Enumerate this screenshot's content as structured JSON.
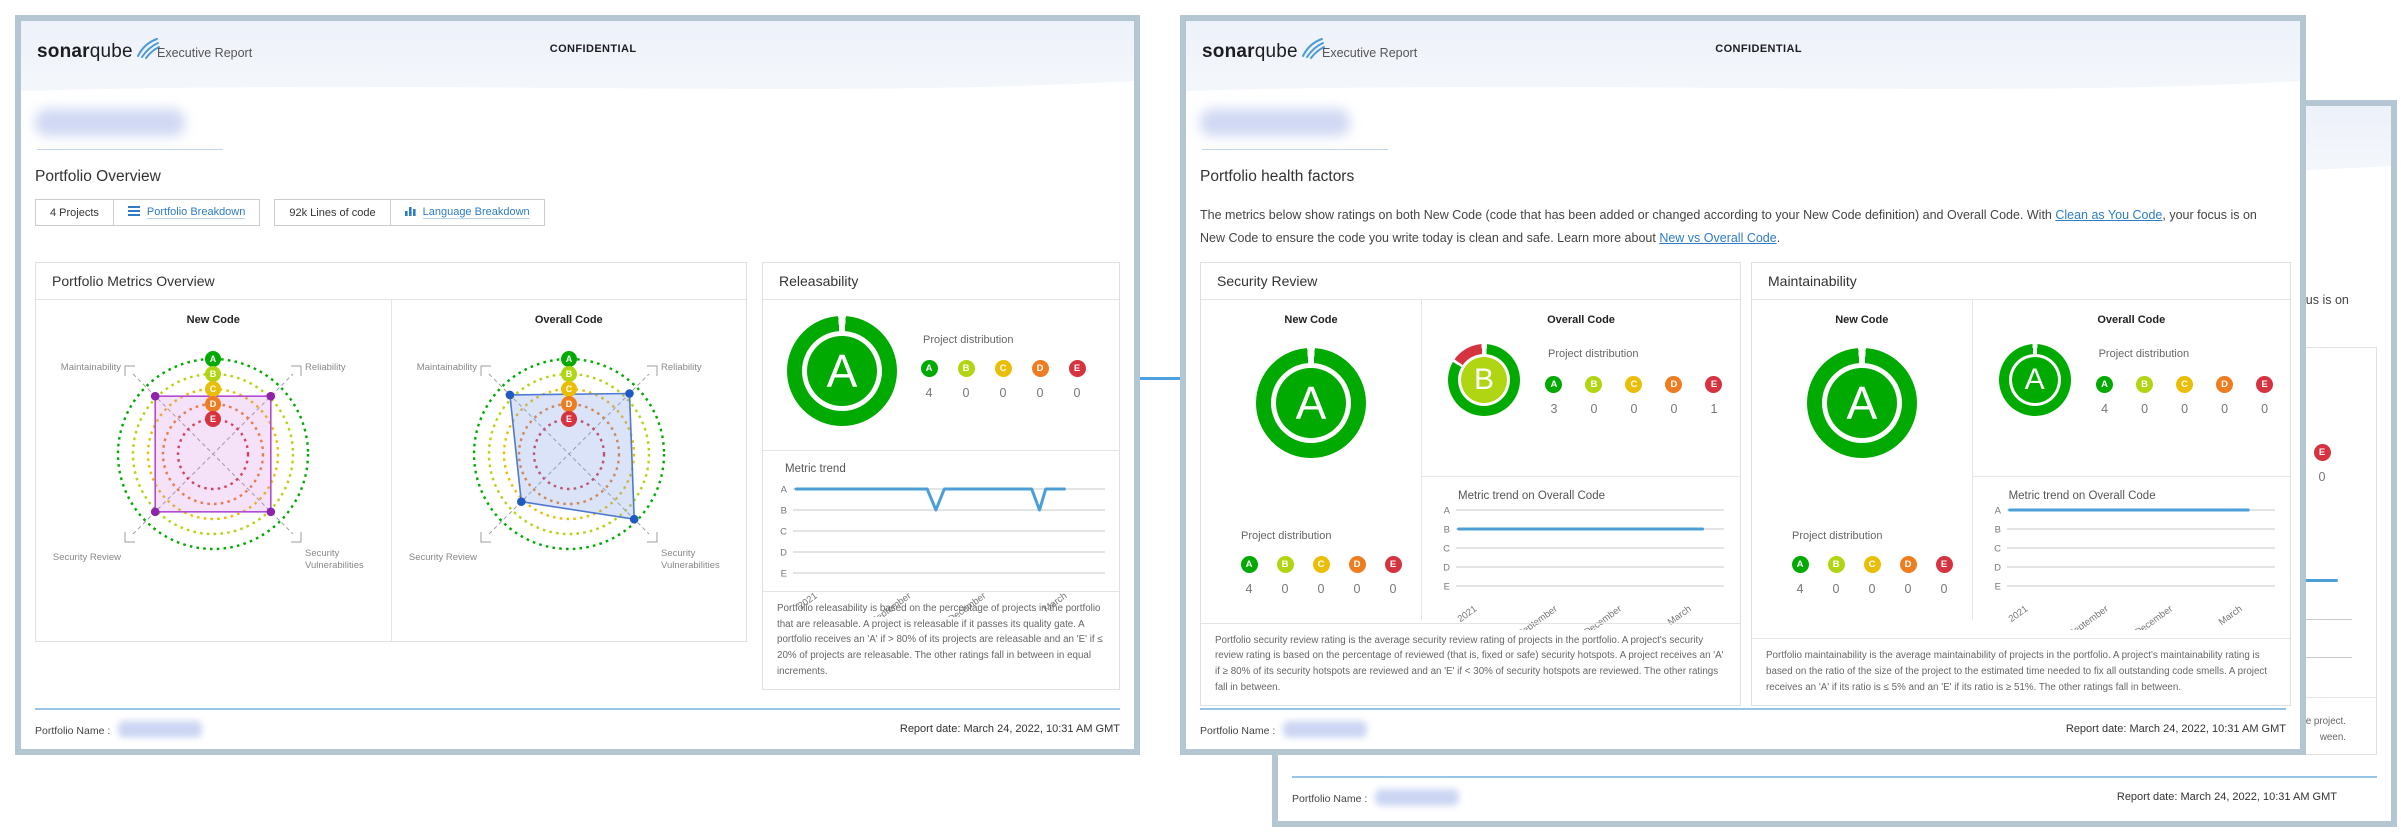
{
  "colors": {
    "trend_line": "#4b9fd5",
    "link": "#2f7cc4",
    "page_border": "#b5c6d3",
    "rating": {
      "A": "#00aa00",
      "B": "#b0d513",
      "C": "#eabe06",
      "D": "#ed7d20",
      "E": "#d4333f"
    }
  },
  "header": {
    "brand_bold": "sonar",
    "brand_light": "qube",
    "product": "Executive Report",
    "confidential": "CONFIDENTIAL"
  },
  "footer": {
    "portfolio_name_label": "Portfolio Name :",
    "report_date": "Report date: March 24, 2022, 10:31 AM GMT"
  },
  "page1": {
    "section_title": "Portfolio Overview",
    "toolbar": {
      "projects": "4 Projects",
      "portfolio_breakdown": "Portfolio Breakdown",
      "lines_of_code": "92k Lines of code",
      "language_breakdown": "Language Breakdown"
    },
    "metrics_box_title": "Portfolio Metrics Overview",
    "new_code_label": "New Code",
    "overall_code_label": "Overall Code",
    "releasability": {
      "title": "Releasability",
      "rating": "A",
      "distribution_label": "Project distribution",
      "trend_label": "Metric trend",
      "footnote": "Portfolio releasability is based on the percentage of projects in the portfolio that are releasable. A project is releasable if it passes its quality gate. A portfolio receives an 'A' if > 80% of its projects are releasable and an 'E' if ≤ 20% of projects are releasable. The other ratings fall in between in equal increments."
    }
  },
  "page2": {
    "section_title": "Portfolio health factors",
    "intro": {
      "part1": "The metrics below show ratings on both New Code (code that has been added or changed according to your New Code definition) and Overall Code. With ",
      "link1": "Clean as You Code",
      "part2": ", your focus is on New Code to ensure the code you write today is clean and safe. Learn more about ",
      "link2": "New vs Overall Code",
      "part3": "."
    },
    "security_review": {
      "title": "Security Review",
      "new_code_label": "New Code",
      "overall_code_label": "Overall Code",
      "new_rating": "A",
      "overall_rating": "B",
      "distribution_label": "Project distribution",
      "trend_label": "Metric trend on Overall Code",
      "footnote": "Portfolio security review rating is the average security review rating of projects in the portfolio. A project's security review rating is based on the percentage of reviewed (that is, fixed or safe) security hotspots. A project receives an 'A' if ≥ 80% of its security hotspots are reviewed and an 'E' if < 30% of security hotspots are reviewed. The other ratings fall in between."
    },
    "maintainability": {
      "title": "Maintainability",
      "new_code_label": "New Code",
      "overall_code_label": "Overall Code",
      "new_rating": "A",
      "overall_rating": "A",
      "distribution_label": "Project distribution",
      "trend_label": "Metric trend on Overall Code",
      "footnote": "Portfolio maintainability is the average maintainability of projects in the portfolio. A project's maintainability rating is based on the ratio of the size of the project to the estimated time needed to fix all outstanding code smells. A project receives an 'A' if its ratio is ≤ 5% and an 'E' if its ratio is ≥ 51%. The other ratings fall in between."
    }
  },
  "page3": {
    "footnote_fragment_1": "the project.",
    "footnote_fragment_2": "ween."
  },
  "chart_data": [
    {
      "id": "new-code-radar",
      "type": "radar",
      "title": "New Code",
      "axes": [
        "Maintainability",
        "Reliability",
        "Security Vulnerabilities",
        "Security Review"
      ],
      "rings": [
        "A",
        "B",
        "C",
        "D",
        "E"
      ],
      "series": {
        "name": "New Code ratings",
        "stroke": "#b24bd6",
        "fill": "rgba(210,120,225,0.22)",
        "dot": "#8e24aa",
        "values_pct": [
          86,
          86,
          86,
          86
        ]
      }
    },
    {
      "id": "overall-code-radar",
      "type": "radar",
      "title": "Overall Code",
      "axes": [
        "Maintainability",
        "Reliability",
        "Security Vulnerabilities",
        "Security Review"
      ],
      "rings": [
        "A",
        "B",
        "C",
        "D",
        "E"
      ],
      "series": {
        "name": "Overall Code ratings",
        "stroke": "#4f79d0",
        "fill": "rgba(133,161,227,0.30)",
        "dot": "#2059c2",
        "values_pct": [
          88,
          90,
          97,
          71
        ]
      }
    },
    {
      "id": "releasability-trend",
      "type": "line",
      "title": "Metric trend",
      "y_categories": [
        "A",
        "B",
        "C",
        "D",
        "E"
      ],
      "xticks": [
        {
          "label": "2021",
          "pct": 8
        },
        {
          "label": "September",
          "pct": 38
        },
        {
          "label": "December",
          "pct": 62
        },
        {
          "label": "March",
          "pct": 88
        }
      ],
      "points": [
        [
          1,
          "A"
        ],
        [
          43,
          "A"
        ],
        [
          45.8,
          "B"
        ],
        [
          48.5,
          "A"
        ],
        [
          76.5,
          "A"
        ],
        [
          79,
          "B"
        ],
        [
          81,
          "A"
        ],
        [
          87,
          "A"
        ]
      ]
    },
    {
      "id": "security-overall-trend",
      "type": "line",
      "title": "Metric trend on Overall Code",
      "y_categories": [
        "A",
        "B",
        "C",
        "D",
        "E"
      ],
      "xticks": [
        {
          "label": "2021",
          "pct": 8
        },
        {
          "label": "September",
          "pct": 38
        },
        {
          "label": "December",
          "pct": 62
        },
        {
          "label": "March",
          "pct": 88
        }
      ],
      "points": [
        [
          1,
          "B"
        ],
        [
          92,
          "B"
        ]
      ]
    },
    {
      "id": "maintainability-overall-trend",
      "type": "line",
      "title": "Metric trend on Overall Code",
      "y_categories": [
        "A",
        "B",
        "C",
        "D",
        "E"
      ],
      "xticks": [
        {
          "label": "2021",
          "pct": 8
        },
        {
          "label": "September",
          "pct": 38
        },
        {
          "label": "December",
          "pct": 62
        },
        {
          "label": "March",
          "pct": 88
        }
      ],
      "points": [
        [
          1,
          "A"
        ],
        [
          90,
          "A"
        ]
      ]
    },
    {
      "id": "releasability-distribution",
      "type": "distribution",
      "values": {
        "A": 4,
        "B": 0,
        "C": 0,
        "D": 0,
        "E": 0
      }
    },
    {
      "id": "security-new-distribution",
      "type": "distribution",
      "values": {
        "A": 4,
        "B": 0,
        "C": 0,
        "D": 0,
        "E": 0
      }
    },
    {
      "id": "security-overall-distribution",
      "type": "distribution",
      "values": {
        "A": 3,
        "B": 0,
        "C": 0,
        "D": 0,
        "E": 1
      }
    },
    {
      "id": "maintainability-new-distribution",
      "type": "distribution",
      "values": {
        "A": 4,
        "B": 0,
        "C": 0,
        "D": 0,
        "E": 0
      }
    },
    {
      "id": "maintainability-overall-distribution",
      "type": "distribution",
      "values": {
        "A": 4,
        "B": 0,
        "C": 0,
        "D": 0,
        "E": 0
      }
    },
    {
      "id": "page3-distribution-fragment",
      "type": "distribution",
      "values": {
        "E": 0
      }
    },
    {
      "id": "releasability-donut",
      "type": "donut",
      "rating": "A",
      "size": 110,
      "segments": [
        [
          "#00aa00",
          4,
          356
        ]
      ]
    },
    {
      "id": "security-new-donut",
      "type": "donut",
      "rating": "A",
      "size": 110,
      "segments": [
        [
          "#00aa00",
          4,
          356
        ]
      ]
    },
    {
      "id": "security-overall-donut",
      "type": "donut",
      "rating": "B",
      "size": 72,
      "segments": [
        [
          "#00aa00",
          5,
          300
        ],
        [
          "#d4333f",
          305,
          356
        ]
      ]
    },
    {
      "id": "maintainability-new-donut",
      "type": "donut",
      "rating": "A",
      "size": 110,
      "segments": [
        [
          "#00aa00",
          4,
          356
        ]
      ]
    },
    {
      "id": "maintainability-overall-donut",
      "type": "donut",
      "rating": "A",
      "size": 72,
      "segments": [
        [
          "#00aa00",
          4,
          356
        ]
      ]
    }
  ]
}
